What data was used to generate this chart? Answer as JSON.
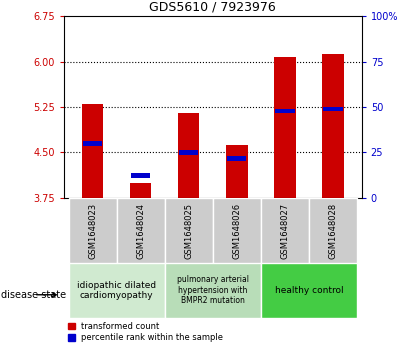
{
  "title": "GDS5610 / 7923976",
  "samples": [
    "GSM1648023",
    "GSM1648024",
    "GSM1648025",
    "GSM1648026",
    "GSM1648027",
    "GSM1648028"
  ],
  "red_tops": [
    5.3,
    4.0,
    5.15,
    4.62,
    6.08,
    6.12
  ],
  "blue_vals": [
    4.65,
    4.12,
    4.5,
    4.4,
    5.18,
    5.22
  ],
  "bar_bottom": 3.75,
  "ylim_left": [
    3.75,
    6.75
  ],
  "ylim_right": [
    0,
    100
  ],
  "left_ticks": [
    3.75,
    4.5,
    5.25,
    6.0,
    6.75
  ],
  "right_ticks": [
    0,
    25,
    50,
    75,
    100
  ],
  "right_tick_labels": [
    "0",
    "25",
    "50",
    "75",
    "100%"
  ],
  "hlines": [
    4.5,
    5.25,
    6.0
  ],
  "bar_width": 0.45,
  "red_color": "#CC0000",
  "blue_color": "#0000CC",
  "disease_state_label": "disease state",
  "legend_red": "transformed count",
  "legend_blue": "percentile rank within the sample",
  "tick_color_left": "#CC0000",
  "tick_color_right": "#0000CC",
  "group_boxes": [
    {
      "label": "idiopathic dilated\ncardiomyopathy",
      "cols": [
        0,
        1
      ],
      "color": "#d0ead0"
    },
    {
      "label": "pulmonary arterial\nhypertension with\nBMPR2 mutation",
      "cols": [
        2,
        3
      ],
      "color": "#b8ddb8"
    },
    {
      "label": "healthy control",
      "cols": [
        4,
        5
      ],
      "color": "#44cc44"
    }
  ],
  "sample_box_color": "#cccccc",
  "fig_width": 4.11,
  "fig_height": 3.63,
  "dpi": 100
}
